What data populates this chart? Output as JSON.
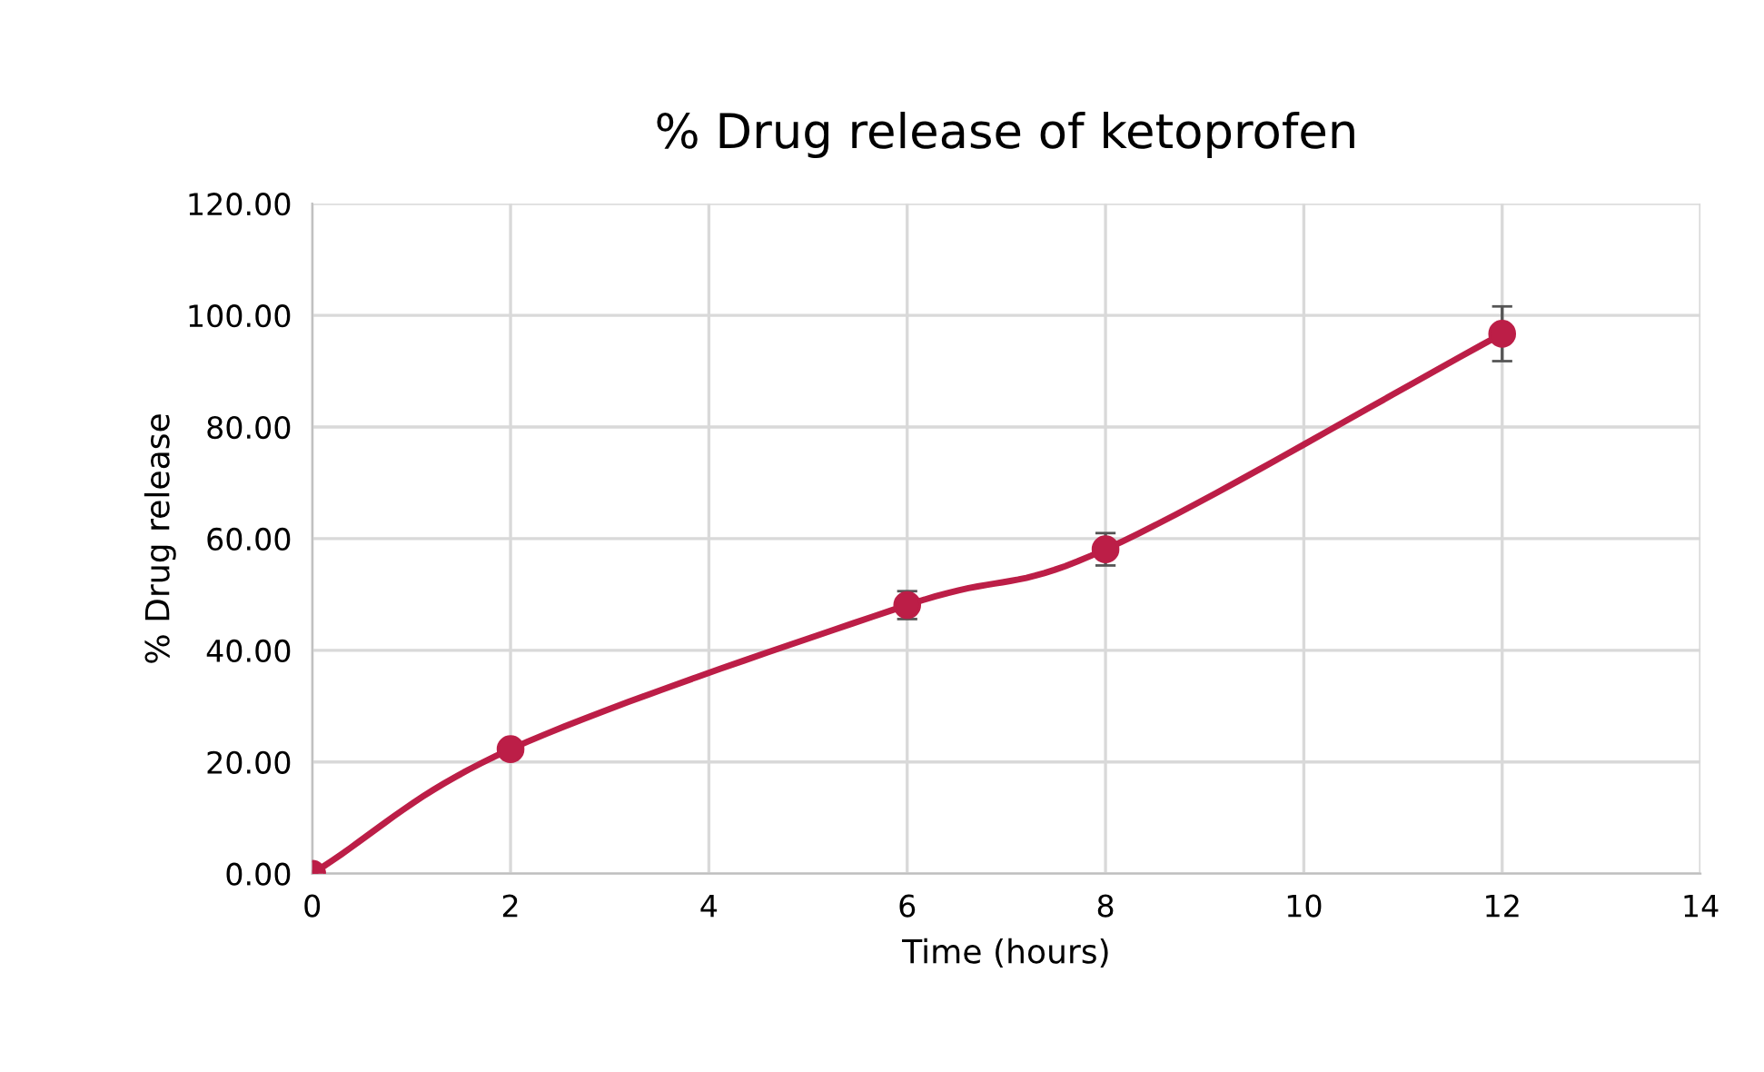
{
  "chart_data": {
    "type": "line",
    "title": "% Drug release of ketoprofen",
    "xlabel": "Time (hours)",
    "ylabel": "% Drug release",
    "x": [
      0,
      2,
      6,
      8,
      12
    ],
    "series": [
      {
        "color": "#bc1e47",
        "values": [
          0,
          22.3,
          48.1,
          58.1,
          96.7
        ],
        "errors": [
          null,
          null,
          2.5,
          2.9,
          4.9
        ]
      }
    ],
    "xlim": [
      0,
      14
    ],
    "xticks": [
      0,
      2,
      4,
      6,
      8,
      10,
      12,
      14
    ],
    "ylim": [
      0,
      120
    ],
    "yticks": [
      {
        "value": 0,
        "label": "0.00"
      },
      {
        "value": 20,
        "label": "20.00"
      },
      {
        "value": 40,
        "label": "40.00"
      },
      {
        "value": 60,
        "label": "60.00"
      },
      {
        "value": 80,
        "label": "80.00"
      },
      {
        "value": 100,
        "label": "100.00"
      },
      {
        "value": 120,
        "label": "120.00"
      }
    ],
    "grid": true,
    "marker": "circle",
    "line_style": "solid"
  }
}
